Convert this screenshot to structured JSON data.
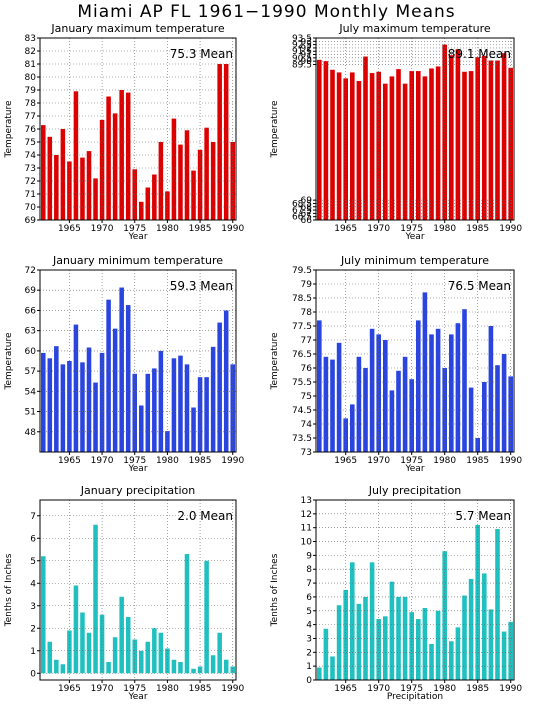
{
  "page_title": "Miami AP FL   1961−1990 Monthly Means",
  "colors": {
    "red": "#dd0000",
    "blue": "#2a44e0",
    "teal": "#20c0c0",
    "grid": "#666666"
  },
  "chart_data": [
    {
      "type": "bar",
      "title": "January maximum temperature",
      "xlabel": "Year",
      "ylabel": "Temperature",
      "mean_label": "75.3  Mean",
      "color": "red",
      "x": [
        1961,
        1962,
        1963,
        1964,
        1965,
        1966,
        1967,
        1968,
        1969,
        1970,
        1971,
        1972,
        1973,
        1974,
        1975,
        1976,
        1977,
        1978,
        1979,
        1980,
        1981,
        1982,
        1983,
        1984,
        1985,
        1986,
        1987,
        1988,
        1989,
        1990
      ],
      "values": [
        76.3,
        75.4,
        74.0,
        76.0,
        73.5,
        78.9,
        73.8,
        74.3,
        72.2,
        76.7,
        78.5,
        77.2,
        79.0,
        78.8,
        72.9,
        70.4,
        71.5,
        72.5,
        75.0,
        71.2,
        76.8,
        74.8,
        75.9,
        72.8,
        74.4,
        76.1,
        75.0,
        81.0,
        81.0,
        75.0
      ],
      "ylim": [
        69,
        83
      ],
      "yticks": [
        "69",
        "70",
        "71",
        "72",
        "73",
        "74",
        "75",
        "76",
        "77",
        "78",
        "79",
        "80",
        "81",
        "82",
        "83"
      ],
      "xticks": [
        "1965",
        "1970",
        "1975",
        "1980",
        "1985",
        "1990"
      ]
    },
    {
      "type": "bar",
      "title": "July maximum temperature",
      "xlabel": "Year",
      "ylabel": "Temperature",
      "mean_label": "89.1  Mean",
      "color": "red",
      "x": [
        1961,
        1962,
        1963,
        1964,
        1965,
        1966,
        1967,
        1968,
        1969,
        1970,
        1971,
        1972,
        1973,
        1974,
        1975,
        1976,
        1977,
        1978,
        1979,
        1980,
        1981,
        1982,
        1983,
        1984,
        1985,
        1986,
        1987,
        1988,
        1989,
        1990
      ],
      "values": [
        90.2,
        90.0,
        88.7,
        88.3,
        87.4,
        88.3,
        87.0,
        90.7,
        88.2,
        88.4,
        86.6,
        87.7,
        88.8,
        86.6,
        88.5,
        88.5,
        87.7,
        88.9,
        89.2,
        92.5,
        90.9,
        91.8,
        88.4,
        88.5,
        90.6,
        90.8,
        90.1,
        90.1,
        91.2,
        89.0
      ],
      "ylim": [
        66,
        93.5
      ],
      "yticks": [
        "66",
        "66.5",
        "67",
        "67.5",
        "68",
        "68.5",
        "69",
        "89.5",
        "90",
        "90.5",
        "91",
        "91.5",
        "92",
        "92.5",
        "93",
        "93.5"
      ],
      "xticks": [
        "1965",
        "1970",
        "1975",
        "1980",
        "1985",
        "1990"
      ]
    },
    {
      "type": "bar",
      "title": "January minimum temperature",
      "xlabel": "Year",
      "ylabel": "Temperature",
      "mean_label": "59.3  Mean",
      "color": "blue",
      "x": [
        1961,
        1962,
        1963,
        1964,
        1965,
        1966,
        1967,
        1968,
        1969,
        1970,
        1971,
        1972,
        1973,
        1974,
        1975,
        1976,
        1977,
        1978,
        1979,
        1980,
        1981,
        1982,
        1983,
        1984,
        1985,
        1986,
        1987,
        1988,
        1989,
        1990
      ],
      "values": [
        59.7,
        58.9,
        60.7,
        58.0,
        58.5,
        63.9,
        58.3,
        60.5,
        55.3,
        59.7,
        67.6,
        63.3,
        69.4,
        66.8,
        56.6,
        51.9,
        56.6,
        57.4,
        60.0,
        48.1,
        58.9,
        59.3,
        58.0,
        51.6,
        56.1,
        56.1,
        60.6,
        64.2,
        66.0,
        58.0
      ],
      "ylim": [
        45,
        72
      ],
      "yticks": [
        "48",
        "51",
        "54",
        "57",
        "60",
        "63",
        "66",
        "69",
        "72"
      ],
      "xticks": [
        "1965",
        "1970",
        "1975",
        "1980",
        "1985",
        "1990"
      ]
    },
    {
      "type": "bar",
      "title": "July minimum temperature",
      "xlabel": "Year",
      "ylabel": "Temperature",
      "mean_label": "76.5  Mean",
      "color": "blue",
      "x": [
        1961,
        1962,
        1963,
        1964,
        1965,
        1966,
        1967,
        1968,
        1969,
        1970,
        1971,
        1972,
        1973,
        1974,
        1975,
        1976,
        1977,
        1978,
        1979,
        1980,
        1981,
        1982,
        1983,
        1984,
        1985,
        1986,
        1987,
        1988,
        1989,
        1990
      ],
      "values": [
        77.7,
        76.4,
        76.3,
        76.9,
        74.2,
        74.7,
        76.4,
        76.0,
        77.4,
        77.2,
        77.0,
        75.2,
        75.9,
        76.4,
        75.6,
        77.7,
        78.7,
        77.2,
        77.4,
        76.0,
        77.2,
        77.6,
        78.1,
        75.3,
        73.5,
        75.5,
        77.5,
        76.1,
        76.5,
        75.7
      ],
      "ylim": [
        73,
        79.5
      ],
      "yticks": [
        "73",
        "73.5",
        "74",
        "74.5",
        "75",
        "75.5",
        "76",
        "76.5",
        "77",
        "77.5",
        "78",
        "78.5",
        "79",
        "79.5"
      ],
      "xticks": [
        "1965",
        "1970",
        "1975",
        "1980",
        "1985",
        "1990"
      ]
    },
    {
      "type": "bar",
      "title": "January precipitation",
      "xlabel": "Year",
      "ylabel": "Tenths of Inches",
      "mean_label": "2.0  Mean",
      "color": "teal",
      "x": [
        1961,
        1962,
        1963,
        1964,
        1965,
        1966,
        1967,
        1968,
        1969,
        1970,
        1971,
        1972,
        1973,
        1974,
        1975,
        1976,
        1977,
        1978,
        1979,
        1980,
        1981,
        1982,
        1983,
        1984,
        1985,
        1986,
        1987,
        1988,
        1989,
        1990
      ],
      "values": [
        5.2,
        1.4,
        0.6,
        0.4,
        1.9,
        3.9,
        2.7,
        1.8,
        6.6,
        2.6,
        0.5,
        1.6,
        3.4,
        2.5,
        1.5,
        1.0,
        1.4,
        2.0,
        1.8,
        1.1,
        0.6,
        0.5,
        5.3,
        0.2,
        0.3,
        5.0,
        0.8,
        1.8,
        0.6,
        0.3
      ],
      "ylim": [
        -0.3,
        7.7
      ],
      "yticks": [
        "0",
        "1",
        "2",
        "3",
        "4",
        "5",
        "6",
        "7"
      ],
      "xticks": [
        "1965",
        "1970",
        "1975",
        "1980",
        "1985",
        "1990"
      ]
    },
    {
      "type": "bar",
      "title": "July precipitation",
      "xlabel": "Precipitation",
      "ylabel": "Tenths of Inches",
      "mean_label": "5.7  Mean",
      "color": "teal",
      "x": [
        1961,
        1962,
        1963,
        1964,
        1965,
        1966,
        1967,
        1968,
        1969,
        1970,
        1971,
        1972,
        1973,
        1974,
        1975,
        1976,
        1977,
        1978,
        1979,
        1980,
        1981,
        1982,
        1983,
        1984,
        1985,
        1986,
        1987,
        1988,
        1989,
        1990
      ],
      "values": [
        0.9,
        3.7,
        1.7,
        5.4,
        6.5,
        8.5,
        5.5,
        6.0,
        8.5,
        4.4,
        4.6,
        7.1,
        6.0,
        6.0,
        4.9,
        4.4,
        5.2,
        2.6,
        5.0,
        9.3,
        2.8,
        3.8,
        6.1,
        7.3,
        11.2,
        7.7,
        5.1,
        10.9,
        3.5,
        4.2
      ],
      "ylim": [
        0,
        13
      ],
      "yticks": [
        "0",
        "1",
        "2",
        "3",
        "4",
        "5",
        "6",
        "7",
        "8",
        "9",
        "10",
        "11",
        "12",
        "13"
      ],
      "xticks": [
        "1965",
        "1970",
        "1975",
        "1980",
        "1985",
        "1990"
      ]
    }
  ]
}
